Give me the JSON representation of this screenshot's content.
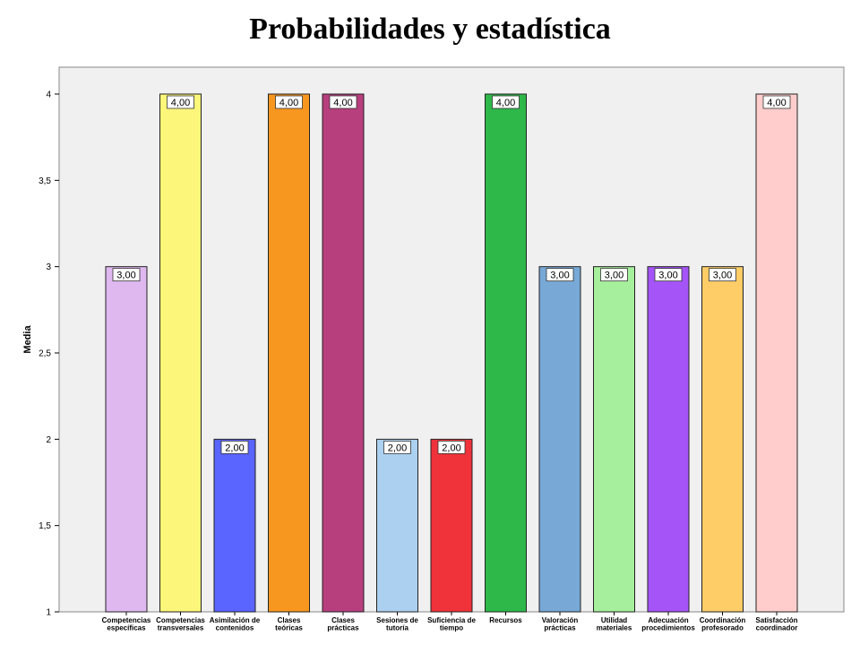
{
  "page": {
    "title": "Probabilidades y estadística"
  },
  "chart_data": {
    "type": "bar",
    "title": "Probabilidades y estadística",
    "xlabel": "",
    "ylabel": "Media",
    "ylim": [
      1,
      4.1
    ],
    "yticks": [
      1,
      1.5,
      2,
      2.5,
      3,
      3.5,
      4
    ],
    "ytick_labels": [
      "1",
      "1,5",
      "2",
      "2,5",
      "3",
      "3,5",
      "4"
    ],
    "grid": false,
    "plot_background": "#f0f0f0",
    "categories": [
      [
        "Competencias",
        "específicas"
      ],
      [
        "Competencias",
        "transversales"
      ],
      [
        "Asimilación de",
        "contenidos"
      ],
      [
        "Clases",
        "teóricas"
      ],
      [
        "Clases",
        "prácticas"
      ],
      [
        "Sesiones de",
        "tutoría"
      ],
      [
        "Suficiencia de",
        "tiempo"
      ],
      [
        "Recursos"
      ],
      [
        "Valoración",
        "prácticas"
      ],
      [
        "Utilidad",
        "materiales"
      ],
      [
        "Adecuación",
        "procedimientos"
      ],
      [
        "Coordinación",
        "profesorado"
      ],
      [
        "Satisfacción",
        "coordinador"
      ]
    ],
    "values": [
      3,
      4,
      2,
      4,
      4,
      2,
      2,
      4,
      3,
      3,
      3,
      3,
      4
    ],
    "data_labels": [
      "3,00",
      "4,00",
      "2,00",
      "4,00",
      "4,00",
      "2,00",
      "2,00",
      "4,00",
      "3,00",
      "3,00",
      "3,00",
      "3,00",
      "4,00"
    ],
    "colors": [
      "#dfb8f0",
      "#fcf77a",
      "#5a64ff",
      "#f89720",
      "#b83f7e",
      "#acd0f0",
      "#f0323a",
      "#2eb84a",
      "#78a8d6",
      "#a6ef9c",
      "#a554f8",
      "#ffcd68",
      "#fecdcc"
    ]
  }
}
